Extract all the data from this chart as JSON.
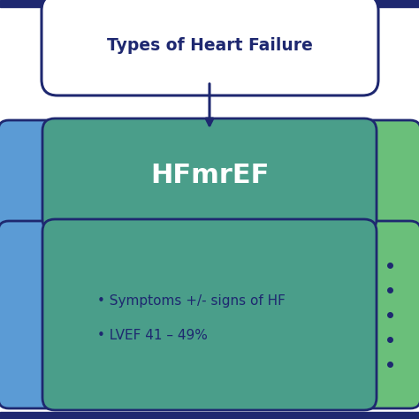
{
  "bg_color": "#ffffff",
  "border_color": "#1e2870",
  "title_text": "Types of Heart Failure",
  "title_box_color": "#ffffff",
  "title_text_color": "#1e2870",
  "hfmref_text": "HFmrEF",
  "hfmref_text_color": "#ffffff",
  "hfmref_box_color": "#4a9e8a",
  "bullet1": "• Symptoms +/- signs of HF",
  "bullet2": "• LVEF 41 – 49%",
  "bullet_box_color": "#4a9e8a",
  "bullet_text_color": "#1e2870",
  "left_bar_color": "#5b9bd5",
  "right_bar_color": "#6abf7a",
  "right_dots_color": "#1e2870",
  "arrow_color": "#1e2870",
  "top_stripe_color": "#1e2870",
  "bottom_stripe_color": "#1e2870",
  "figsize": [
    4.74,
    4.74
  ],
  "dpi": 100
}
